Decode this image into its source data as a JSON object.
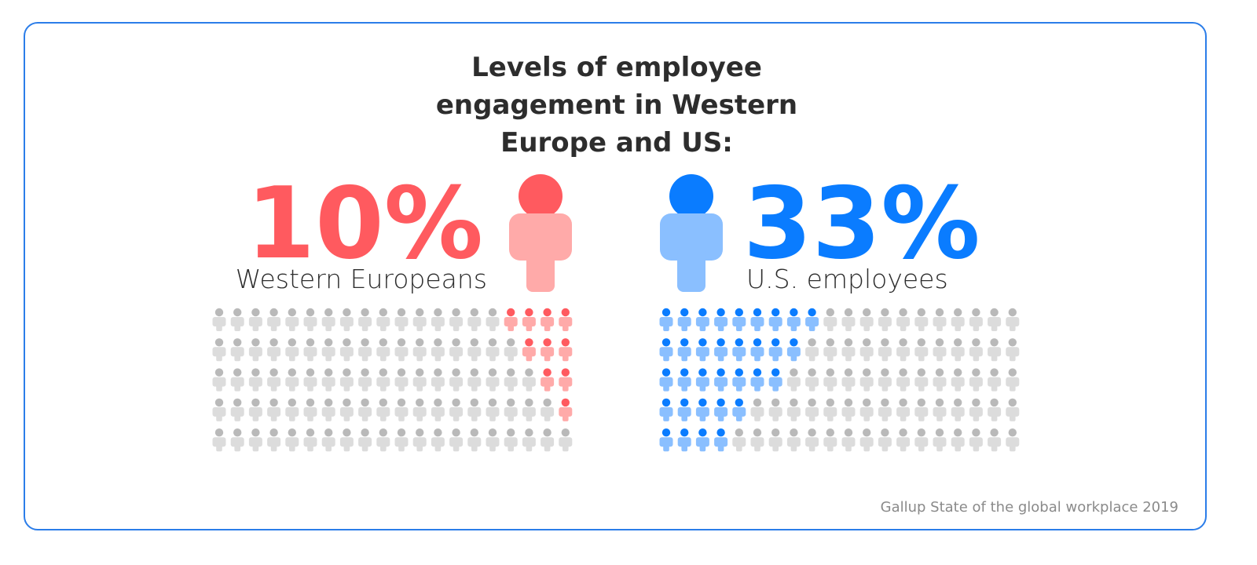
{
  "chart_data": {
    "type": "pictogram",
    "title": "Levels of employee engagement in Western Europe and US:",
    "source": "Gallup State of the global workplace 2019",
    "rows": 5,
    "cols": 20,
    "empty_color": "#b9b9b9",
    "empty_body_color": "#dcdcdc",
    "series": [
      {
        "name": "Western Europeans",
        "value": 10,
        "value_label": "10%",
        "color": "#ff5a5f",
        "light_color": "#ffaaa9",
        "align": "right",
        "row_counts": [
          4,
          3,
          2,
          1,
          0
        ]
      },
      {
        "name": "U.S. employees",
        "value": 33,
        "value_label": "33%",
        "color": "#0a7cff",
        "light_color": "#8abfff",
        "align": "left",
        "row_counts": [
          9,
          8,
          7,
          5,
          4
        ]
      }
    ]
  }
}
